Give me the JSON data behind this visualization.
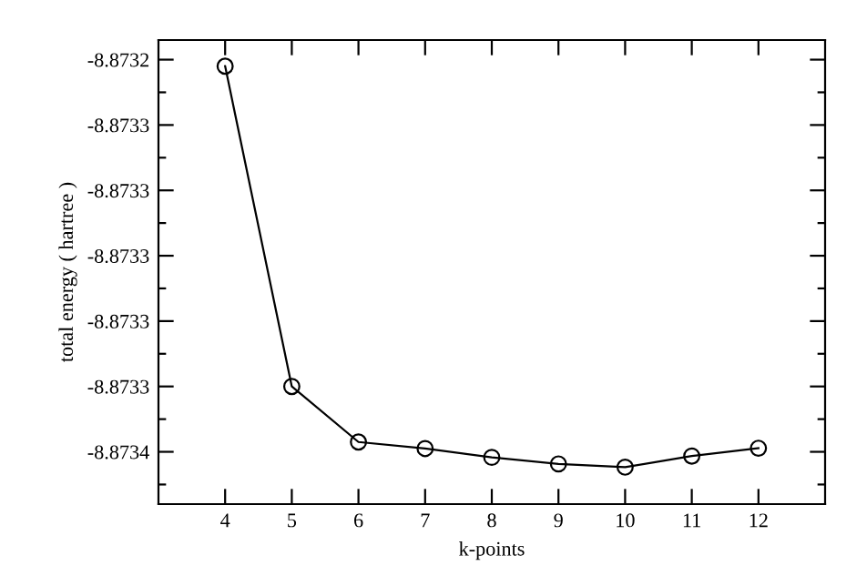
{
  "chart_data": {
    "type": "line",
    "xlabel": "k-points",
    "ylabel": "total energy ( hartree )",
    "x": [
      4,
      5,
      6,
      7,
      8,
      9,
      10,
      11,
      12
    ],
    "series": [
      {
        "color": "#000000",
        "values": [
          -8.873242,
          -8.87334,
          -8.873357,
          -8.873359,
          -8.8733617,
          -8.8733637,
          -8.8733647,
          -8.8733613,
          -8.8733589
        ]
      }
    ],
    "marker": "circle",
    "line_style": "solid",
    "grid": false,
    "legend": false,
    "xlim": [
      3,
      13
    ],
    "xticks": [
      4,
      5,
      6,
      7,
      8,
      9,
      10,
      11,
      12
    ],
    "ylim": [
      -8.873376,
      -8.873234
    ],
    "yticks": [
      {
        "value": -8.87324,
        "label": "-8.8732"
      },
      {
        "value": -8.87326,
        "label": "-8.8733"
      },
      {
        "value": -8.87328,
        "label": "-8.8733"
      },
      {
        "value": -8.8733,
        "label": "-8.8733"
      },
      {
        "value": -8.87332,
        "label": "-8.8733"
      },
      {
        "value": -8.87334,
        "label": "-8.8733"
      },
      {
        "value": -8.87336,
        "label": "-8.8734"
      }
    ]
  }
}
